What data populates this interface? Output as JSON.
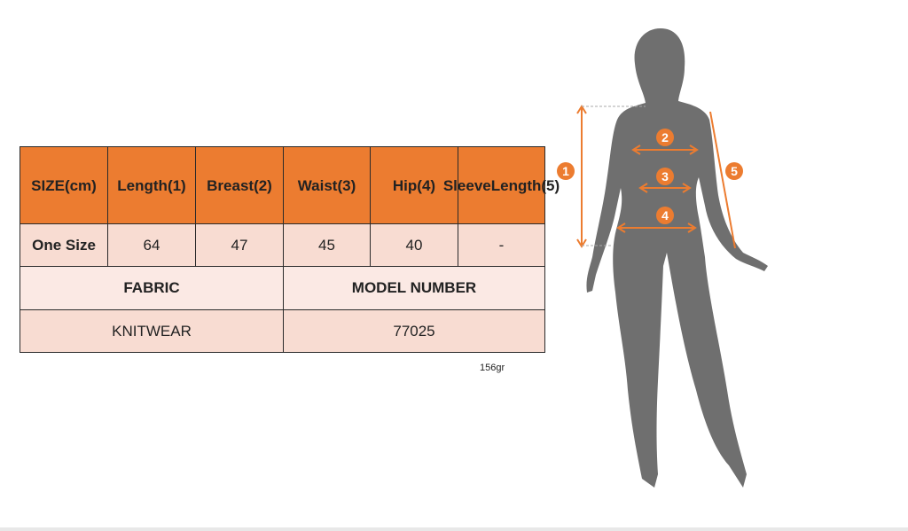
{
  "table": {
    "headers": [
      [
        "SIZE",
        "(cm)"
      ],
      [
        "Length",
        "(1)"
      ],
      [
        "Breast",
        "(2)"
      ],
      [
        "Waist",
        "(3)"
      ],
      [
        "Hip",
        "(4)"
      ],
      [
        "Sleeve",
        "Length",
        "(5)"
      ]
    ],
    "row": [
      "One Size",
      "64",
      "47",
      "45",
      "40",
      "-"
    ],
    "info_headers": [
      "FABRIC",
      "MODEL NUMBER"
    ],
    "info_values": [
      "KNITWEAR",
      "77025"
    ]
  },
  "weight": "156gr",
  "figure": {
    "markers": [
      "1",
      "2",
      "3",
      "4",
      "5"
    ],
    "accent": "#ec7c30",
    "silhouette": "#6f6f6f"
  }
}
